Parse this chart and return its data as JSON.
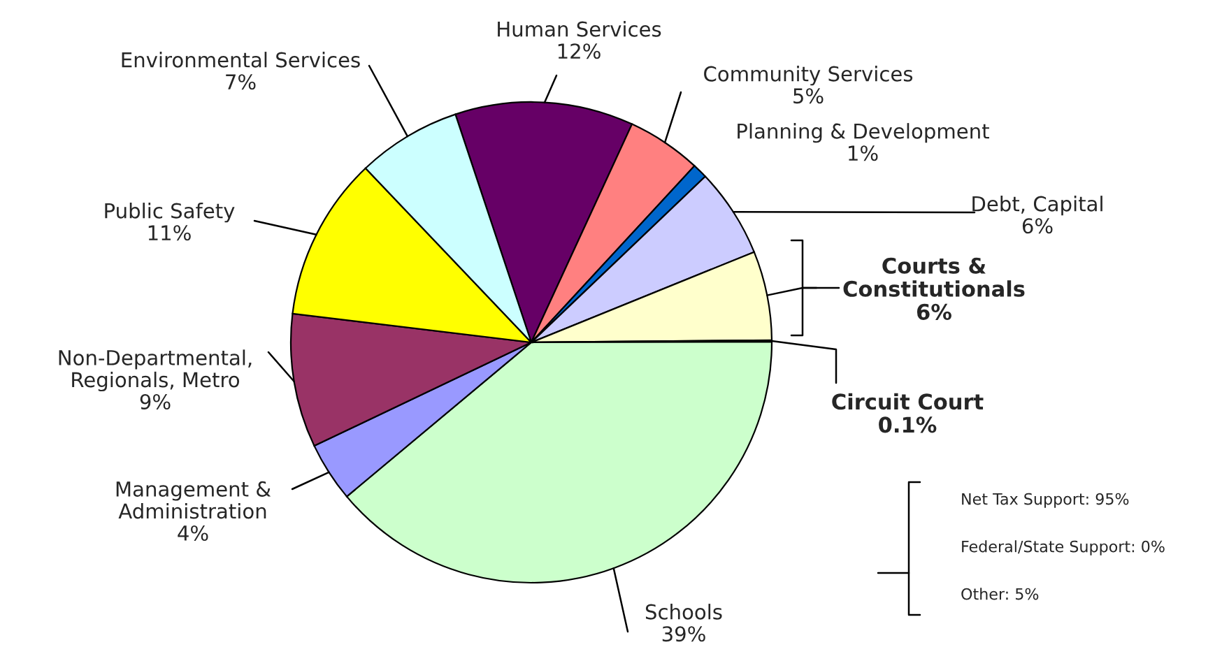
{
  "chart_data": {
    "type": "pie",
    "categories": [
      "Human Services",
      "Community Services",
      "Planning & Development",
      "Debt, Capital",
      "Courts & Constitutionals",
      "Circuit Court",
      "Schools",
      "Management & Administration",
      "Non-Departmental, Regionals, Metro",
      "Public Safety",
      "Environmental Services"
    ],
    "values": [
      12,
      5,
      1,
      6,
      6,
      0.1,
      39,
      4,
      9,
      11,
      7
    ],
    "value_labels": [
      "12%",
      "5%",
      "1%",
      "6%",
      "6%",
      "0.1%",
      "39%",
      "4%",
      "9%",
      "11%",
      "7%"
    ],
    "colors": [
      "#660066",
      "#ff8080",
      "#0066cc",
      "#ccccff",
      "#ffffcc",
      "#ffffcc",
      "#ccffcc",
      "#9999ff",
      "#993366",
      "#ffff00",
      "#ccffff"
    ],
    "annotations": [
      "Net Tax Support: 95%",
      "Federal/State Support: 0%",
      "Other: 5%"
    ]
  }
}
